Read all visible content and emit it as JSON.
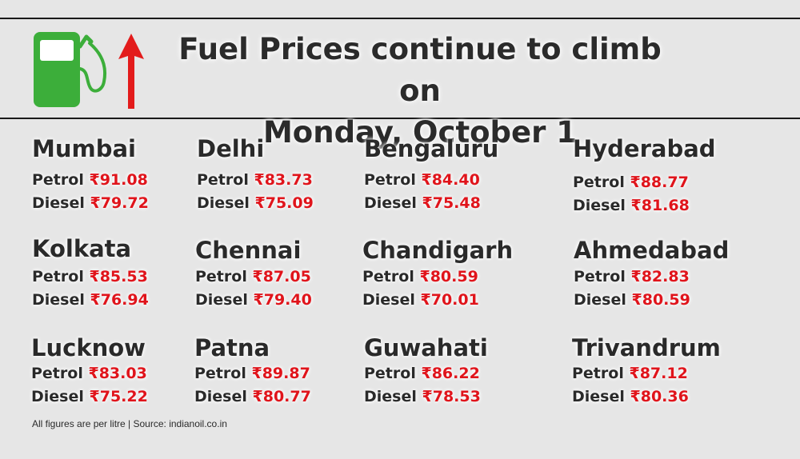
{
  "header": {
    "title_line1": "Fuel Prices continue to climb on",
    "title_line2": "Monday, October 1"
  },
  "labels": {
    "petrol": "Petrol",
    "diesel": "Diesel"
  },
  "cities": [
    {
      "name": "Mumbai",
      "petrol": "₹91.08",
      "diesel": "₹79.72"
    },
    {
      "name": "Delhi",
      "petrol": "₹83.73",
      "diesel": "₹75.09"
    },
    {
      "name": "Bengaluru",
      "petrol": "₹84.40",
      "diesel": "₹75.48"
    },
    {
      "name": "Hyderabad",
      "petrol": "₹88.77",
      "diesel": "₹81.68"
    },
    {
      "name": "Kolkata",
      "petrol": "₹85.53",
      "diesel": "₹76.94"
    },
    {
      "name": "Chennai",
      "petrol": "₹87.05",
      "diesel": "₹79.40"
    },
    {
      "name": "Chandigarh",
      "petrol": "₹80.59",
      "diesel": "₹70.01"
    },
    {
      "name": "Ahmedabad",
      "petrol": "₹82.83",
      "diesel": "₹80.59"
    },
    {
      "name": "Lucknow",
      "petrol": "₹83.03",
      "diesel": "₹75.22"
    },
    {
      "name": "Patna",
      "petrol": "₹89.87",
      "diesel": "₹80.77"
    },
    {
      "name": "Guwahati",
      "petrol": "₹86.22",
      "diesel": "₹78.53"
    },
    {
      "name": "Trivandrum",
      "petrol": "₹87.12",
      "diesel": "₹80.36"
    }
  ],
  "footnote": "All figures are per litre | Source: indianoil.co.in",
  "colors": {
    "price": "#e0141b",
    "pump": "#3cae3a",
    "arrow": "#e31b1b",
    "text": "#2a2a2a"
  },
  "icons": {
    "pump": "fuel-pump-icon",
    "arrow": "up-arrow-icon"
  }
}
